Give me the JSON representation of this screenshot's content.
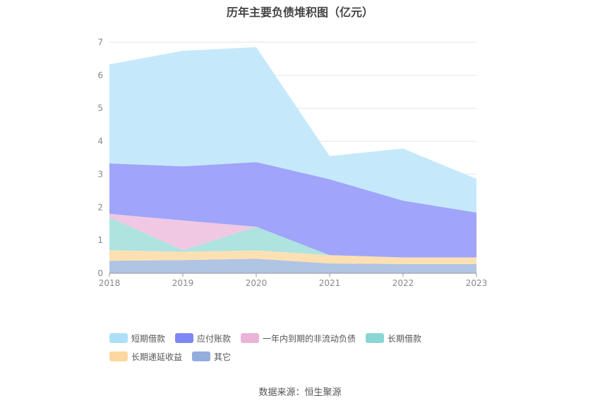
{
  "chart_data": {
    "type": "area",
    "stacked": true,
    "title": "历年主要负债堆积图（亿元）",
    "categories": [
      "2018",
      "2019",
      "2020",
      "2021",
      "2022",
      "2023"
    ],
    "ylim": [
      0,
      7
    ],
    "yticks": [
      "0",
      "1",
      "2",
      "3",
      "4",
      "5",
      "6",
      "7"
    ],
    "grid": true,
    "legend_position": "bottom",
    "series": [
      {
        "name": "其它",
        "color": "#b0c4e4",
        "legend_color": "#93aedc",
        "values": [
          0.38,
          0.4,
          0.44,
          0.3,
          0.28,
          0.28
        ]
      },
      {
        "name": "长期递延收益",
        "color": "#fde0b2",
        "legend_color": "#fcd89e",
        "values": [
          0.32,
          0.25,
          0.25,
          0.25,
          0.2,
          0.2
        ]
      },
      {
        "name": "长期借款",
        "color": "#aee3e0",
        "legend_color": "#8ad6d4",
        "values": [
          1.0,
          0.05,
          0.72,
          0.0,
          0.0,
          0.0
        ]
      },
      {
        "name": "一年内到期的非流动负债",
        "color": "#f0c8e4",
        "legend_color": "#e9b4d8",
        "values": [
          0.1,
          0.9,
          0.0,
          0.0,
          0.0,
          0.0
        ]
      },
      {
        "name": "应付账款",
        "color": "#a0a4fa",
        "legend_color": "#7f86f5",
        "values": [
          1.53,
          1.64,
          1.96,
          2.3,
          1.72,
          1.36
        ]
      },
      {
        "name": "短期借款",
        "color": "#c5e9fb",
        "legend_color": "#addff9",
        "values": [
          3.0,
          3.5,
          3.48,
          0.7,
          1.58,
          1.02
        ]
      }
    ]
  },
  "legend_order": [
    "短期借款",
    "应付账款",
    "一年内到期的非流动负债",
    "长期借款",
    "长期递延收益",
    "其它"
  ],
  "source": "数据来源：恒生聚源"
}
